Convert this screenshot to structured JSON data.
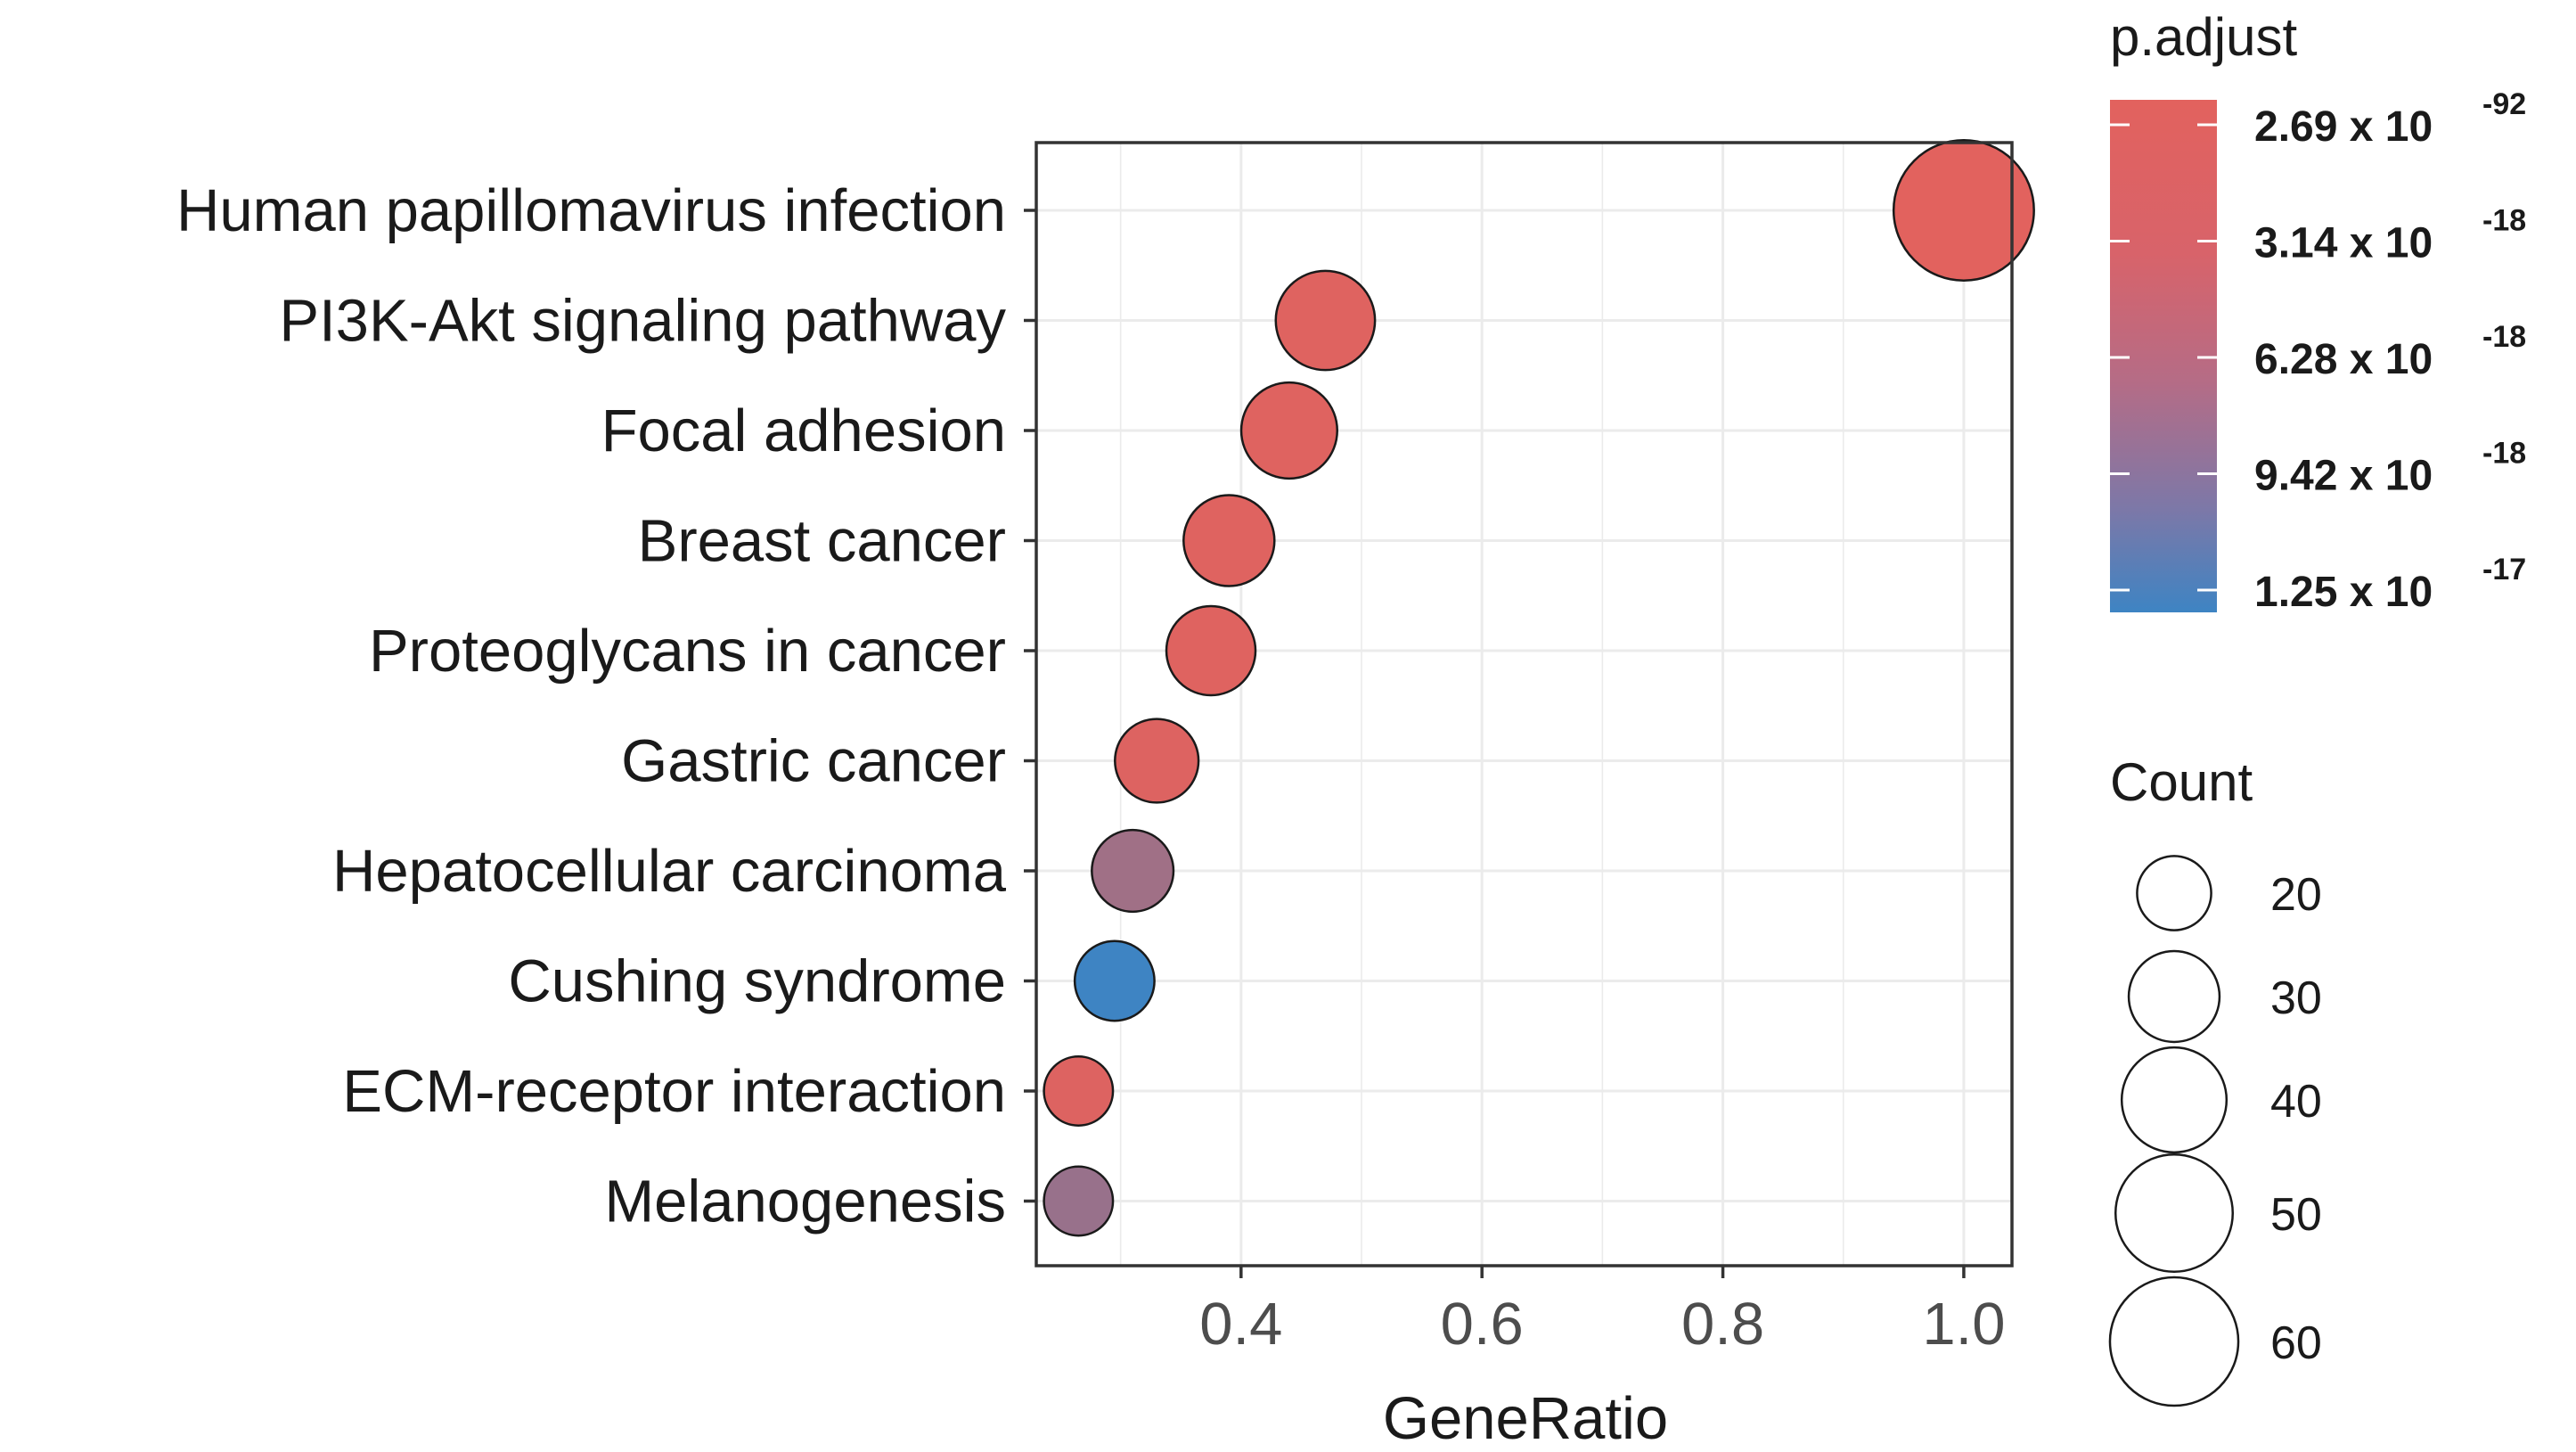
{
  "chart_data": {
    "type": "scatter",
    "title": "",
    "xlabel": "GeneRatio",
    "ylabel": "",
    "xlim": [
      0.23,
      1.04
    ],
    "x_ticks": [
      "0.4",
      "0.6",
      "0.8",
      "1.0"
    ],
    "x_tick_values": [
      0.4,
      0.6,
      0.8,
      1.0
    ],
    "grid": true,
    "points": [
      {
        "term": "Human papillomavirus infection",
        "gene_ratio": 1.0,
        "count": 62,
        "color_pos": 0.0
      },
      {
        "term": "PI3K-Akt signaling pathway",
        "gene_ratio": 0.47,
        "count": 31,
        "color_pos": 0.02
      },
      {
        "term": "Focal adhesion",
        "gene_ratio": 0.44,
        "count": 29,
        "color_pos": 0.02
      },
      {
        "term": "Breast cancer",
        "gene_ratio": 0.39,
        "count": 26,
        "color_pos": 0.02
      },
      {
        "term": "Proteoglycans in cancer",
        "gene_ratio": 0.375,
        "count": 25,
        "color_pos": 0.02
      },
      {
        "term": "Gastric cancer",
        "gene_ratio": 0.33,
        "count": 22,
        "color_pos": 0.03
      },
      {
        "term": "Hepatocellular carcinoma",
        "gene_ratio": 0.31,
        "count": 21,
        "color_pos": 0.4
      },
      {
        "term": "Cushing syndrome",
        "gene_ratio": 0.295,
        "count": 20,
        "color_pos": 1.0
      },
      {
        "term": "ECM-receptor interaction",
        "gene_ratio": 0.265,
        "count": 15,
        "color_pos": 0.03
      },
      {
        "term": "Melanogenesis",
        "gene_ratio": 0.265,
        "count": 15,
        "color_pos": 0.45
      }
    ],
    "color_legend": {
      "title": "p.adjust",
      "low_color": "#E2625E",
      "high_color": "#3E84C3",
      "labels": [
        {
          "mantissa": "2.69 x 10",
          "exponent": "-92",
          "pos": 0.0
        },
        {
          "mantissa": "3.14 x 10",
          "exponent": "-18",
          "pos": 0.25
        },
        {
          "mantissa": "6.28 x 10",
          "exponent": "-18",
          "pos": 0.5
        },
        {
          "mantissa": "9.42 x 10",
          "exponent": "-18",
          "pos": 0.75
        },
        {
          "mantissa": "1.25 x 10",
          "exponent": "-17",
          "pos": 1.0
        }
      ]
    },
    "size_legend": {
      "title": "Count",
      "values": [
        20,
        30,
        40,
        50,
        60
      ]
    }
  }
}
